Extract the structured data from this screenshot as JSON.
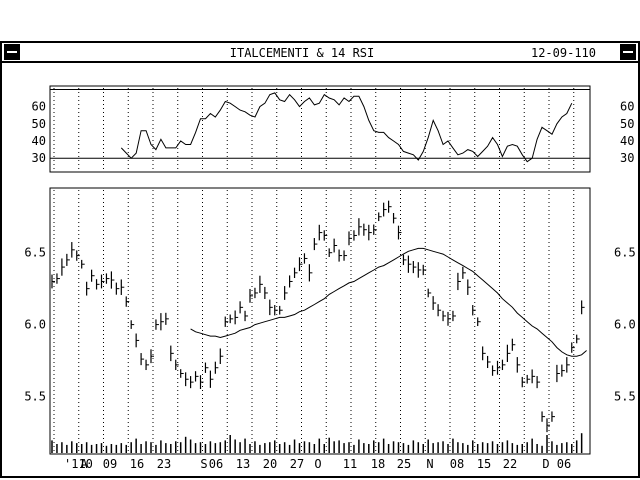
{
  "window": {
    "title": "ITALCEMENTI & 14 RSI",
    "date": "12-09-110"
  },
  "chart_data": [
    {
      "type": "line",
      "title": "14 RSI",
      "ylim": [
        22,
        72
      ],
      "yticks": [
        30,
        40,
        50,
        60
      ],
      "reference_lines": [
        30,
        70
      ],
      "grid": "vertical dotted",
      "series": [
        {
          "values": [
            null,
            null,
            null,
            null,
            null,
            null,
            null,
            null,
            null,
            null,
            null,
            null,
            null,
            null,
            36,
            33,
            30,
            33,
            46,
            46,
            38,
            35,
            41,
            36,
            36,
            36,
            40,
            38,
            38,
            45,
            53,
            53,
            56,
            54,
            58,
            63,
            62,
            60,
            58,
            57,
            55,
            54,
            60,
            62,
            67,
            68,
            64,
            63,
            67,
            64,
            60,
            63,
            65,
            61,
            62,
            67,
            65,
            64,
            61,
            65,
            63,
            66,
            66,
            60,
            52,
            46,
            45,
            45,
            42,
            40,
            38,
            34,
            33,
            32,
            29,
            34,
            42,
            52,
            46,
            38,
            40,
            36,
            32,
            33,
            35,
            34,
            31,
            34,
            37,
            42,
            38,
            31,
            37,
            38,
            37,
            32,
            28,
            30,
            41,
            48,
            46,
            44,
            50,
            54,
            56,
            62
          ]
        }
      ]
    },
    {
      "type": "bar",
      "subtype": "hlc",
      "ylim": [
        5.1,
        6.95
      ],
      "yticks": [
        5.5,
        6.0,
        6.5
      ],
      "x_tick_labels": [
        "'110",
        "A",
        "09",
        "16",
        "23",
        "S",
        "06",
        "13",
        "20",
        "27",
        "O",
        "11",
        "18",
        "25",
        "N",
        "08",
        "15",
        "22",
        "D",
        "06"
      ],
      "close": [
        6.3,
        6.32,
        6.4,
        6.45,
        6.52,
        6.48,
        6.42,
        6.25,
        6.34,
        6.28,
        6.3,
        6.32,
        6.31,
        6.25,
        6.26,
        6.16,
        6.0,
        5.89,
        5.76,
        5.72,
        5.78,
        6.0,
        6.02,
        6.04,
        5.8,
        5.72,
        5.66,
        5.62,
        5.6,
        5.64,
        5.6,
        5.7,
        5.62,
        5.7,
        5.78,
        6.02,
        6.04,
        6.05,
        6.12,
        6.06,
        6.2,
        6.22,
        6.28,
        6.22,
        6.12,
        6.1,
        6.1,
        6.22,
        6.3,
        6.36,
        6.42,
        6.46,
        6.36,
        6.56,
        6.64,
        6.62,
        6.5,
        6.55,
        6.48,
        6.48,
        6.6,
        6.62,
        6.68,
        6.66,
        6.64,
        6.66,
        6.75,
        6.8,
        6.82,
        6.74,
        6.64,
        6.45,
        6.42,
        6.4,
        6.38,
        6.38,
        6.22,
        6.15,
        6.1,
        6.06,
        6.04,
        6.06,
        6.3,
        6.36,
        6.26,
        6.1,
        6.02,
        5.8,
        5.74,
        5.68,
        5.7,
        5.72,
        5.8,
        5.86,
        5.72,
        5.6,
        5.62,
        5.64,
        5.6,
        5.36,
        5.3,
        5.36,
        5.66,
        5.68,
        5.72,
        5.84,
        5.9,
        6.12
      ],
      "moving_average": {
        "start_index": 28,
        "values": [
          5.97,
          5.95,
          5.94,
          5.93,
          5.92,
          5.92,
          5.91,
          5.92,
          5.93,
          5.94,
          5.96,
          5.97,
          5.98,
          6.0,
          6.01,
          6.02,
          6.03,
          6.04,
          6.05,
          6.05,
          6.06,
          6.07,
          6.09,
          6.1,
          6.12,
          6.14,
          6.16,
          6.18,
          6.21,
          6.23,
          6.25,
          6.27,
          6.29,
          6.3,
          6.32,
          6.34,
          6.36,
          6.38,
          6.4,
          6.41,
          6.43,
          6.45,
          6.47,
          6.49,
          6.51,
          6.52,
          6.53,
          6.53,
          6.52,
          6.51,
          6.5,
          6.49,
          6.47,
          6.45,
          6.43,
          6.41,
          6.39,
          6.37,
          6.34,
          6.31,
          6.28,
          6.25,
          6.22,
          6.18,
          6.15,
          6.12,
          6.08,
          6.05,
          6.02,
          5.99,
          5.97,
          5.94,
          5.91,
          5.88,
          5.84,
          5.81,
          5.79,
          5.78,
          5.78,
          5.79,
          5.82
        ]
      },
      "volume": [
        14,
        10,
        12,
        9,
        13,
        11,
        10,
        12,
        9,
        10,
        11,
        8,
        10,
        9,
        11,
        9,
        12,
        16,
        10,
        13,
        12,
        9,
        14,
        11,
        10,
        13,
        12,
        18,
        15,
        11,
        12,
        10,
        13,
        11,
        12,
        14,
        20,
        15,
        12,
        16,
        10,
        13,
        9,
        11,
        12,
        14,
        10,
        12,
        9,
        15,
        11,
        13,
        12,
        10,
        16,
        10,
        17,
        13,
        14,
        11,
        12,
        9,
        15,
        11,
        10,
        14,
        12,
        16,
        10,
        13,
        12,
        11,
        9,
        14,
        12,
        10,
        15,
        11,
        12,
        13,
        10,
        16,
        12,
        11,
        9,
        14,
        10,
        12,
        11,
        13,
        10,
        12,
        14,
        11,
        9,
        10,
        12,
        16,
        10,
        8,
        20,
        13,
        9,
        11,
        12,
        10,
        14,
        22
      ]
    }
  ]
}
